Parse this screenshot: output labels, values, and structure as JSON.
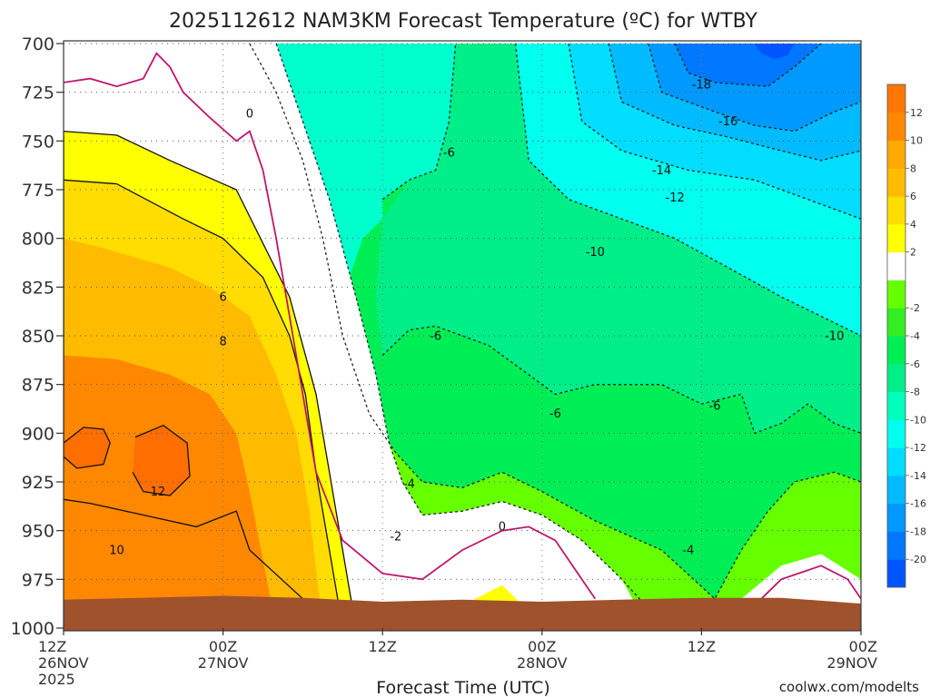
{
  "chart_data": {
    "type": "heatmap",
    "title": "2025112612 NAM3KM Forecast Temperature (ºC) for WTBY",
    "xlabel": "Forecast Time (UTC)",
    "ylabel": "",
    "credit": "coolwx.com/modelts",
    "ylim": [
      1000,
      700
    ],
    "xlim": [
      0,
      60
    ],
    "y_ticks": [
      {
        "value": 700,
        "label": "700"
      },
      {
        "value": 725,
        "label": "725"
      },
      {
        "value": 750,
        "label": "750"
      },
      {
        "value": 775,
        "label": "775"
      },
      {
        "value": 800,
        "label": "800"
      },
      {
        "value": 825,
        "label": "825"
      },
      {
        "value": 850,
        "label": "850"
      },
      {
        "value": 875,
        "label": "875"
      },
      {
        "value": 900,
        "label": "900"
      },
      {
        "value": 925,
        "label": "925"
      },
      {
        "value": 950,
        "label": "950"
      },
      {
        "value": 975,
        "label": "975"
      },
      {
        "value": 1000,
        "label": "1000"
      }
    ],
    "x_ticks": [
      {
        "value": 0,
        "lines": [
          "12Z",
          "26NOV",
          "2025"
        ]
      },
      {
        "value": 12,
        "lines": [
          "00Z",
          "27NOV"
        ]
      },
      {
        "value": 24,
        "lines": [
          "12Z"
        ]
      },
      {
        "value": 36,
        "lines": [
          "00Z",
          "28NOV"
        ]
      },
      {
        "value": 48,
        "lines": [
          "12Z"
        ]
      },
      {
        "value": 60,
        "lines": [
          "00Z",
          "29NOV"
        ]
      }
    ],
    "colorbar": {
      "colors": [
        "#0055ff",
        "#0077ff",
        "#0099ff",
        "#00bbff",
        "#00ddff",
        "#00ffee",
        "#00ffbb",
        "#00ee88",
        "#00ee55",
        "#33ee22",
        "#66ff00",
        "#ffffff",
        "#ffff00",
        "#ffdd00",
        "#ffbb00",
        "#ffaa00",
        "#ff8800",
        "#ff7700"
      ],
      "tick_labels": [
        "-20",
        "-18",
        "-16",
        "-14",
        "-12",
        "-10",
        "-8",
        "-6",
        "-4",
        "-2",
        "2",
        "4",
        "6",
        "8",
        "10",
        "12"
      ]
    },
    "series": [
      {
        "name": "12",
        "points": [
          [
            0,
            905
          ],
          [
            1.5,
            897
          ],
          [
            3,
            898
          ],
          [
            3.5,
            905
          ],
          [
            3,
            916
          ],
          [
            1,
            918
          ],
          [
            0,
            912
          ]
        ]
      },
      {
        "name": "12",
        "points": [
          [
            5.4,
            902
          ],
          [
            7.5,
            896
          ],
          [
            9.3,
            905
          ],
          [
            9.5,
            922
          ],
          [
            8,
            932
          ],
          [
            6,
            930
          ],
          [
            5.2,
            920
          ]
        ]
      },
      {
        "name": "10",
        "points": [
          [
            0,
            934
          ],
          [
            2,
            936
          ],
          [
            6,
            942
          ],
          [
            10,
            948
          ],
          [
            13,
            940
          ],
          [
            14,
            960
          ],
          [
            18,
            985
          ],
          [
            19,
            1000
          ],
          [
            0,
            1000
          ]
        ]
      },
      {
        "name": "8",
        "points": [
          [
            0,
            915
          ],
          [
            0,
            770
          ],
          [
            4,
            772
          ],
          [
            9,
            790
          ],
          [
            12,
            800
          ],
          [
            15,
            820
          ],
          [
            17,
            850
          ],
          [
            18.2,
            880
          ],
          [
            19,
            920
          ],
          [
            20,
            960
          ],
          [
            21,
            1000
          ],
          [
            10,
            1000
          ]
        ]
      },
      {
        "name": "6",
        "points": [
          [
            0,
            770
          ],
          [
            0,
            745
          ],
          [
            4,
            747
          ],
          [
            8,
            760
          ],
          [
            13,
            775
          ],
          [
            17,
            830
          ],
          [
            19,
            880
          ],
          [
            20,
            920
          ],
          [
            21,
            960
          ],
          [
            22,
            1000
          ]
        ]
      },
      {
        "name": "0",
        "points": [
          [
            0,
            720
          ],
          [
            2,
            718
          ],
          [
            4,
            722
          ],
          [
            6,
            718
          ],
          [
            7,
            705
          ],
          [
            8,
            712
          ],
          [
            9,
            725
          ],
          [
            11,
            738
          ],
          [
            13,
            750
          ],
          [
            14,
            745
          ],
          [
            15,
            765
          ],
          [
            16,
            800
          ],
          [
            17,
            840
          ],
          [
            18,
            880
          ],
          [
            19,
            920
          ],
          [
            21,
            955
          ],
          [
            24,
            972
          ],
          [
            27,
            975
          ],
          [
            30,
            960
          ],
          [
            33,
            950
          ],
          [
            35,
            948
          ],
          [
            37,
            955
          ],
          [
            40,
            985
          ]
        ]
      },
      {
        "name": "0",
        "points": [
          [
            51,
            995
          ],
          [
            54,
            975
          ],
          [
            57,
            968
          ],
          [
            59,
            975
          ],
          [
            60,
            985
          ]
        ]
      },
      {
        "name": "-2",
        "points": [
          [
            16,
            700
          ],
          [
            18,
            740
          ],
          [
            20,
            780
          ],
          [
            22,
            830
          ],
          [
            23.5,
            870
          ],
          [
            24.5,
            905
          ],
          [
            25.5,
            925
          ],
          [
            27,
            942
          ],
          [
            30,
            940
          ],
          [
            33,
            935
          ],
          [
            36,
            942
          ],
          [
            39,
            955
          ],
          [
            42,
            975
          ],
          [
            44,
            990
          ]
        ]
      },
      {
        "name": "-4",
        "points": [
          [
            14,
            700
          ],
          [
            16,
            725
          ],
          [
            18,
            760
          ],
          [
            19.5,
            800
          ],
          [
            21,
            850
          ],
          [
            23,
            890
          ],
          [
            25,
            910
          ],
          [
            27,
            925
          ],
          [
            30,
            928
          ],
          [
            33,
            920
          ],
          [
            36,
            930
          ],
          [
            40,
            945
          ],
          [
            45,
            960
          ],
          [
            49,
            985
          ],
          [
            51,
            960
          ],
          [
            53,
            940
          ],
          [
            55,
            925
          ],
          [
            58,
            920
          ],
          [
            60,
            925
          ]
        ]
      },
      {
        "name": "-6",
        "points": [
          [
            24,
            780
          ],
          [
            26,
            770
          ],
          [
            28,
            765
          ],
          [
            29,
            740
          ],
          [
            29.5,
            700
          ]
        ]
      },
      {
        "name": "-6",
        "points": [
          [
            24,
            860
          ],
          [
            26,
            847
          ],
          [
            28,
            845
          ],
          [
            30,
            850
          ],
          [
            32,
            855
          ],
          [
            35,
            870
          ],
          [
            37,
            880
          ],
          [
            40,
            875
          ],
          [
            45,
            875
          ],
          [
            48,
            885
          ],
          [
            51,
            880
          ],
          [
            52,
            900
          ],
          [
            54,
            895
          ],
          [
            56,
            885
          ],
          [
            58,
            895
          ],
          [
            60,
            900
          ]
        ]
      },
      {
        "name": "-10",
        "points": [
          [
            34,
            700
          ],
          [
            35,
            760
          ],
          [
            38,
            780
          ],
          [
            42,
            790
          ],
          [
            46,
            800
          ],
          [
            50,
            815
          ],
          [
            54,
            830
          ],
          [
            57,
            840
          ],
          [
            60,
            850
          ]
        ]
      },
      {
        "name": "-12",
        "points": [
          [
            38,
            700
          ],
          [
            39,
            740
          ],
          [
            42,
            755
          ],
          [
            47,
            765
          ],
          [
            52,
            770
          ],
          [
            56,
            780
          ],
          [
            60,
            790
          ]
        ]
      },
      {
        "name": "-14",
        "points": [
          [
            41,
            700
          ],
          [
            42,
            730
          ],
          [
            46,
            742
          ],
          [
            50,
            748
          ],
          [
            54,
            755
          ],
          [
            57,
            760
          ],
          [
            60,
            755
          ]
        ]
      },
      {
        "name": "-16",
        "points": [
          [
            44,
            700
          ],
          [
            45,
            725
          ],
          [
            49,
            735
          ],
          [
            52,
            742
          ],
          [
            55,
            745
          ],
          [
            58,
            735
          ],
          [
            60,
            730
          ]
        ]
      },
      {
        "name": "-18",
        "points": [
          [
            46,
            700
          ],
          [
            47,
            715
          ],
          [
            49,
            720
          ],
          [
            53,
            722
          ],
          [
            55,
            712
          ],
          [
            57,
            700
          ]
        ]
      }
    ],
    "contour_labels": [
      {
        "text": "12",
        "x": 7.1,
        "y": 932
      },
      {
        "text": "10",
        "x": 4,
        "y": 962
      },
      {
        "text": "8",
        "x": 12,
        "y": 855
      },
      {
        "text": "6",
        "x": 12,
        "y": 832
      },
      {
        "text": "0",
        "x": 14,
        "y": 738
      },
      {
        "text": "0",
        "x": 33,
        "y": 950
      },
      {
        "text": "-2",
        "x": 25,
        "y": 955
      },
      {
        "text": "-4",
        "x": 26,
        "y": 928
      },
      {
        "text": "-6",
        "x": 29,
        "y": 758
      },
      {
        "text": "-6",
        "x": 28,
        "y": 852
      },
      {
        "text": "-6",
        "x": 37,
        "y": 892
      },
      {
        "text": "-6",
        "x": 49,
        "y": 888
      },
      {
        "text": "-4",
        "x": 47,
        "y": 962
      },
      {
        "text": "-10",
        "x": 40,
        "y": 809
      },
      {
        "text": "-10",
        "x": 58,
        "y": 852
      },
      {
        "text": "-12",
        "x": 46,
        "y": 781
      },
      {
        "text": "-14",
        "x": 45,
        "y": 767
      },
      {
        "text": "-16",
        "x": 50,
        "y": 742
      },
      {
        "text": "-18",
        "x": 48,
        "y": 723
      }
    ]
  }
}
